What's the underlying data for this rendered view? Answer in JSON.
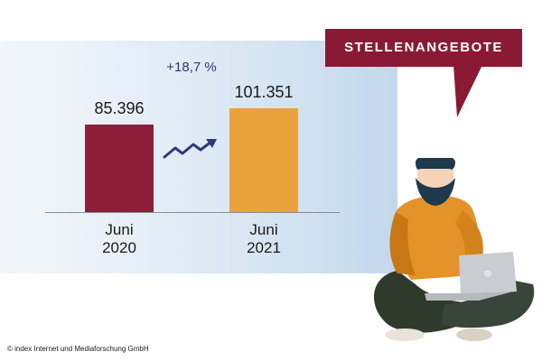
{
  "chart_data": {
    "type": "bar",
    "categories": [
      "Juni\n2020",
      "Juni\n2021"
    ],
    "values": [
      85396,
      101351
    ],
    "value_labels": [
      "85.396",
      "101.351"
    ],
    "change_label": "+18,7 %",
    "ylim": [
      0,
      110000
    ],
    "grid": false,
    "colors": [
      "#8f1e3a",
      "#eaa23d"
    ]
  },
  "callout": {
    "label": "STELLENANGEBOTE",
    "color": "#8a1a33"
  },
  "credit": "© index Internet und Mediaforschung GmbH",
  "colors": {
    "accent_arrow": "#2f3a78",
    "panel": "#dce8f3"
  }
}
